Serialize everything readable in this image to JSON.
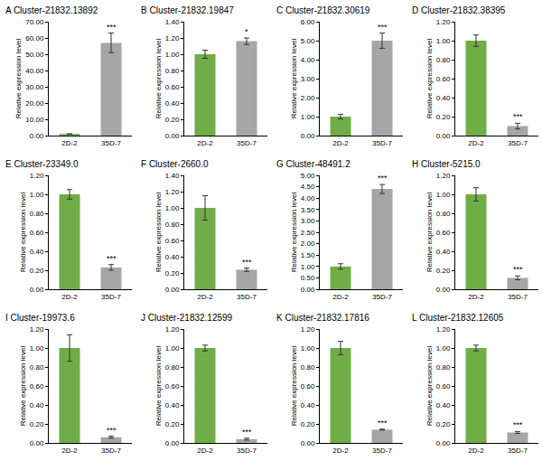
{
  "chart_data": [
    {
      "type": "bar",
      "title": "A Cluster-21832.13892",
      "y_label": "Relative expression level",
      "categories": [
        "2D-2",
        "35D-7"
      ],
      "values": [
        1.0,
        57.0
      ],
      "errors": [
        0.1,
        6.0
      ],
      "colors": [
        "#70ad47",
        "#a6a6a6"
      ],
      "annotations": [
        {
          "text": "***",
          "category": "35D-7"
        }
      ],
      "ylim": [
        0,
        70
      ],
      "yticks": [
        {
          "value": 0,
          "label": "0.00"
        },
        {
          "value": 10,
          "label": "10.00"
        },
        {
          "value": 20,
          "label": "20.00"
        },
        {
          "value": 30,
          "label": "30.00"
        },
        {
          "value": 40,
          "label": "40.00"
        },
        {
          "value": 50,
          "label": "50.00"
        },
        {
          "value": 60,
          "label": "60.00"
        },
        {
          "value": 70,
          "label": "70.00"
        }
      ],
      "grid": false
    },
    {
      "type": "bar",
      "title": "B Cluster-21832.19847",
      "y_label": "Relative expression level",
      "categories": [
        "2D-2",
        "35D-7"
      ],
      "values": [
        1.0,
        1.16
      ],
      "errors": [
        0.05,
        0.04
      ],
      "colors": [
        "#70ad47",
        "#a6a6a6"
      ],
      "annotations": [
        {
          "text": "*",
          "category": "35D-7"
        }
      ],
      "ylim": [
        0,
        1.4
      ],
      "yticks": [
        {
          "value": 0,
          "label": "0.00"
        },
        {
          "value": 0.2,
          "label": "0.20"
        },
        {
          "value": 0.4,
          "label": "0.40"
        },
        {
          "value": 0.6,
          "label": "0.60"
        },
        {
          "value": 0.8,
          "label": "0.80"
        },
        {
          "value": 1.0,
          "label": "1.00"
        },
        {
          "value": 1.2,
          "label": "1.20"
        },
        {
          "value": 1.4,
          "label": "1.40"
        }
      ],
      "grid": false
    },
    {
      "type": "bar",
      "title": "C Cluster-21832.30619",
      "y_label": "Relative expression level",
      "categories": [
        "2D-2",
        "35D-7"
      ],
      "values": [
        1.0,
        5.0
      ],
      "errors": [
        0.12,
        0.4
      ],
      "colors": [
        "#70ad47",
        "#a6a6a6"
      ],
      "annotations": [
        {
          "text": "***",
          "category": "35D-7"
        }
      ],
      "ylim": [
        0,
        6
      ],
      "yticks": [
        {
          "value": 0,
          "label": "0.00"
        },
        {
          "value": 1,
          "label": "1.00"
        },
        {
          "value": 2,
          "label": "2.00"
        },
        {
          "value": 3,
          "label": "3.00"
        },
        {
          "value": 4,
          "label": "4.00"
        },
        {
          "value": 5,
          "label": "5.00"
        },
        {
          "value": 6,
          "label": "6.00"
        }
      ],
      "grid": false
    },
    {
      "type": "bar",
      "title": "D Cluster-21832.38395",
      "y_label": "Relative expression level",
      "categories": [
        "2D-2",
        "35D-7"
      ],
      "values": [
        1.0,
        0.1
      ],
      "errors": [
        0.06,
        0.03
      ],
      "colors": [
        "#70ad47",
        "#a6a6a6"
      ],
      "annotations": [
        {
          "text": "***",
          "category": "35D-7"
        }
      ],
      "ylim": [
        0,
        1.2
      ],
      "yticks": [
        {
          "value": 0,
          "label": "0.00"
        },
        {
          "value": 0.2,
          "label": "0.20"
        },
        {
          "value": 0.4,
          "label": "0.40"
        },
        {
          "value": 0.6,
          "label": "0.60"
        },
        {
          "value": 0.8,
          "label": "0.80"
        },
        {
          "value": 1.0,
          "label": "1.00"
        },
        {
          "value": 1.2,
          "label": "1.20"
        }
      ],
      "grid": false
    },
    {
      "type": "bar",
      "title": "E Cluster-23349.0",
      "y_label": "Relative expression level",
      "categories": [
        "2D-2",
        "35D-7"
      ],
      "values": [
        1.0,
        0.23
      ],
      "errors": [
        0.05,
        0.03
      ],
      "colors": [
        "#70ad47",
        "#a6a6a6"
      ],
      "annotations": [
        {
          "text": "***",
          "category": "35D-7"
        }
      ],
      "ylim": [
        0,
        1.2
      ],
      "yticks": [
        {
          "value": 0,
          "label": "0.00"
        },
        {
          "value": 0.2,
          "label": "0.20"
        },
        {
          "value": 0.4,
          "label": "0.40"
        },
        {
          "value": 0.6,
          "label": "0.60"
        },
        {
          "value": 0.8,
          "label": "0.80"
        },
        {
          "value": 1.0,
          "label": "1.00"
        },
        {
          "value": 1.2,
          "label": "1.20"
        }
      ],
      "grid": false
    },
    {
      "type": "bar",
      "title": "F Cluster-2660.0",
      "y_label": "Relative expression level",
      "categories": [
        "2D-2",
        "35D-7"
      ],
      "values": [
        1.0,
        0.24
      ],
      "errors": [
        0.15,
        0.02
      ],
      "colors": [
        "#70ad47",
        "#a6a6a6"
      ],
      "annotations": [
        {
          "text": "***",
          "category": "35D-7"
        }
      ],
      "ylim": [
        0,
        1.4
      ],
      "yticks": [
        {
          "value": 0,
          "label": "0.00"
        },
        {
          "value": 0.2,
          "label": "0.20"
        },
        {
          "value": 0.4,
          "label": "0.40"
        },
        {
          "value": 0.6,
          "label": "0.60"
        },
        {
          "value": 0.8,
          "label": "0.80"
        },
        {
          "value": 1.0,
          "label": "1.00"
        },
        {
          "value": 1.2,
          "label": "1.20"
        },
        {
          "value": 1.4,
          "label": "1.40"
        }
      ],
      "grid": false
    },
    {
      "type": "bar",
      "title": "G Cluster-48491.2",
      "y_label": "Relative expression level",
      "categories": [
        "2D-2",
        "35D-7"
      ],
      "values": [
        1.0,
        4.4
      ],
      "errors": [
        0.12,
        0.2
      ],
      "colors": [
        "#70ad47",
        "#a6a6a6"
      ],
      "annotations": [
        {
          "text": "***",
          "category": "35D-7"
        }
      ],
      "ylim": [
        0,
        5
      ],
      "yticks": [
        {
          "value": 0,
          "label": "0.00"
        },
        {
          "value": 0.5,
          "label": "0.50"
        },
        {
          "value": 1.0,
          "label": "1.00"
        },
        {
          "value": 1.5,
          "label": "1.50"
        },
        {
          "value": 2.0,
          "label": "2.00"
        },
        {
          "value": 2.5,
          "label": "2.50"
        },
        {
          "value": 3.0,
          "label": "3.00"
        },
        {
          "value": 3.5,
          "label": "3.50"
        },
        {
          "value": 4.0,
          "label": "4.00"
        },
        {
          "value": 4.5,
          "label": "4.50"
        },
        {
          "value": 5.0,
          "label": "5.00"
        }
      ],
      "grid": false
    },
    {
      "type": "bar",
      "title": "H Cluster-5215.0",
      "y_label": "Relative expression level",
      "categories": [
        "2D-2",
        "35D-7"
      ],
      "values": [
        1.0,
        0.12
      ],
      "errors": [
        0.07,
        0.02
      ],
      "colors": [
        "#70ad47",
        "#a6a6a6"
      ],
      "annotations": [
        {
          "text": "***",
          "category": "35D-7"
        }
      ],
      "ylim": [
        0,
        1.2
      ],
      "yticks": [
        {
          "value": 0,
          "label": "0.00"
        },
        {
          "value": 0.2,
          "label": "0.20"
        },
        {
          "value": 0.4,
          "label": "0.40"
        },
        {
          "value": 0.6,
          "label": "0.60"
        },
        {
          "value": 0.8,
          "label": "0.80"
        },
        {
          "value": 1.0,
          "label": "1.00"
        },
        {
          "value": 1.2,
          "label": "1.20"
        }
      ],
      "grid": false
    },
    {
      "type": "bar",
      "title": "I Cluster-19973.6",
      "y_label": "Relative expression level",
      "categories": [
        "2D-2",
        "35D-7"
      ],
      "values": [
        1.0,
        0.06
      ],
      "errors": [
        0.14,
        0.01
      ],
      "colors": [
        "#70ad47",
        "#a6a6a6"
      ],
      "annotations": [
        {
          "text": "***",
          "category": "35D-7"
        }
      ],
      "ylim": [
        0,
        1.2
      ],
      "yticks": [
        {
          "value": 0,
          "label": "0.00"
        },
        {
          "value": 0.2,
          "label": "0.20"
        },
        {
          "value": 0.4,
          "label": "0.40"
        },
        {
          "value": 0.6,
          "label": "0.60"
        },
        {
          "value": 0.8,
          "label": "0.80"
        },
        {
          "value": 1.0,
          "label": "1.00"
        },
        {
          "value": 1.2,
          "label": "1.20"
        }
      ],
      "grid": false
    },
    {
      "type": "bar",
      "title": "J Cluster-21832.12599",
      "y_label": "Relative expression level",
      "categories": [
        "2D-2",
        "35D-7"
      ],
      "values": [
        1.0,
        0.04
      ],
      "errors": [
        0.03,
        0.01
      ],
      "colors": [
        "#70ad47",
        "#a6a6a6"
      ],
      "annotations": [
        {
          "text": "***",
          "category": "35D-7"
        }
      ],
      "ylim": [
        0,
        1.2
      ],
      "yticks": [
        {
          "value": 0,
          "label": "0.00"
        },
        {
          "value": 0.2,
          "label": "0.20"
        },
        {
          "value": 0.4,
          "label": "0.40"
        },
        {
          "value": 0.6,
          "label": "0.60"
        },
        {
          "value": 0.8,
          "label": "0.80"
        },
        {
          "value": 1.0,
          "label": "1.00"
        },
        {
          "value": 1.2,
          "label": "1.20"
        }
      ],
      "grid": false
    },
    {
      "type": "bar",
      "title": "K Cluster-21832.17816",
      "y_label": "Relative expression level",
      "categories": [
        "2D-2",
        "35D-7"
      ],
      "values": [
        1.0,
        0.14
      ],
      "errors": [
        0.07,
        0.005
      ],
      "colors": [
        "#70ad47",
        "#a6a6a6"
      ],
      "annotations": [
        {
          "text": "***",
          "category": "35D-7"
        }
      ],
      "ylim": [
        0,
        1.2
      ],
      "yticks": [
        {
          "value": 0,
          "label": "0.00"
        },
        {
          "value": 0.2,
          "label": "0.20"
        },
        {
          "value": 0.4,
          "label": "0.40"
        },
        {
          "value": 0.6,
          "label": "0.60"
        },
        {
          "value": 0.8,
          "label": "0.80"
        },
        {
          "value": 1.0,
          "label": "1.00"
        },
        {
          "value": 1.2,
          "label": "1.20"
        }
      ],
      "grid": false
    },
    {
      "type": "bar",
      "title": "L Cluster-21832.12605",
      "y_label": "Relative expression level",
      "categories": [
        "2D-2",
        "35D-7"
      ],
      "values": [
        1.0,
        0.11
      ],
      "errors": [
        0.03,
        0.01
      ],
      "colors": [
        "#70ad47",
        "#a6a6a6"
      ],
      "annotations": [
        {
          "text": "***",
          "category": "35D-7"
        }
      ],
      "ylim": [
        0,
        1.2
      ],
      "yticks": [
        {
          "value": 0,
          "label": "0.00"
        },
        {
          "value": 0.2,
          "label": "0.20"
        },
        {
          "value": 0.4,
          "label": "0.40"
        },
        {
          "value": 0.6,
          "label": "0.60"
        },
        {
          "value": 0.8,
          "label": "0.80"
        },
        {
          "value": 1.0,
          "label": "1.00"
        },
        {
          "value": 1.2,
          "label": "1.20"
        }
      ],
      "grid": false
    }
  ]
}
